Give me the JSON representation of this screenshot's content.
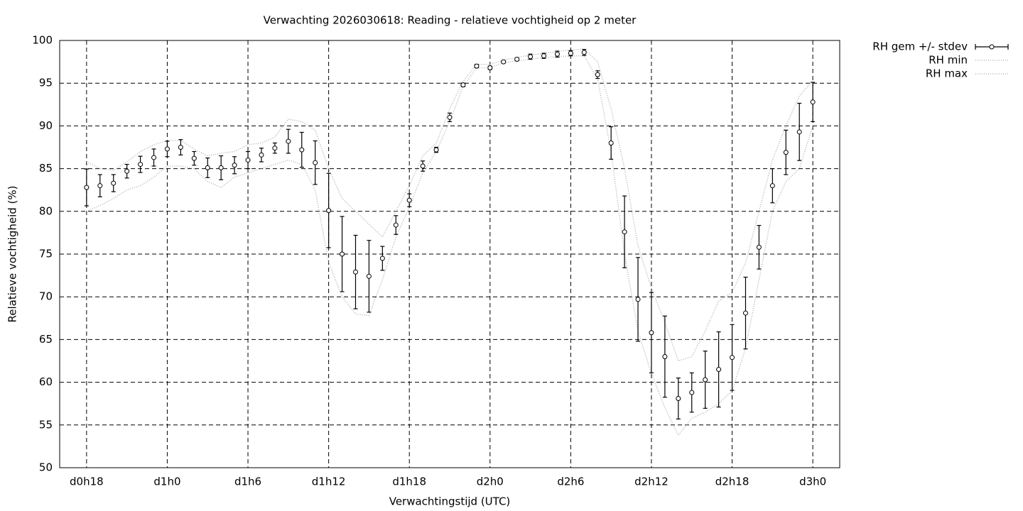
{
  "chart_data": {
    "type": "errorbar-line",
    "title": "Verwachting 2026030618: Reading - relatieve vochtigheid op 2 meter",
    "x_label": "Verwachtingstijd (UTC)",
    "y_label": "Relatieve vochtigheid (%)",
    "x": [
      18,
      19,
      20,
      21,
      22,
      23,
      24,
      25,
      26,
      27,
      28,
      29,
      30,
      31,
      32,
      33,
      34,
      35,
      36,
      37,
      38,
      39,
      40,
      41,
      42,
      43,
      44,
      45,
      46,
      47,
      48,
      49,
      50,
      51,
      52,
      53,
      54,
      55,
      56,
      57,
      58,
      59,
      60,
      61,
      62,
      63,
      64,
      65,
      66,
      67,
      68,
      69,
      70,
      71,
      72
    ],
    "xlim": [
      16,
      74
    ],
    "xticks": [
      {
        "value": 18,
        "label": "d0h18"
      },
      {
        "value": 24,
        "label": "d1h0"
      },
      {
        "value": 30,
        "label": "d1h6"
      },
      {
        "value": 36,
        "label": "d1h12"
      },
      {
        "value": 42,
        "label": "d1h18"
      },
      {
        "value": 48,
        "label": "d2h0"
      },
      {
        "value": 54,
        "label": "d2h6"
      },
      {
        "value": 60,
        "label": "d2h12"
      },
      {
        "value": 66,
        "label": "d2h18"
      },
      {
        "value": 72,
        "label": "d3h0"
      }
    ],
    "ylim": [
      50,
      100
    ],
    "yticks": [
      50,
      55,
      60,
      65,
      70,
      75,
      80,
      85,
      90,
      95,
      100
    ],
    "grid": true,
    "legend": "outside-top-right",
    "series": [
      {
        "name": "RH gem +/- stdev",
        "color": "#000000",
        "values": [
          82.8,
          83.0,
          83.3,
          84.7,
          85.5,
          86.3,
          87.3,
          87.5,
          86.2,
          85.1,
          85.1,
          85.4,
          86.0,
          86.6,
          87.4,
          88.2,
          87.2,
          85.7,
          80.1,
          75.0,
          72.9,
          72.4,
          74.5,
          78.4,
          81.3,
          85.3,
          87.2,
          91.0,
          94.8,
          97.0,
          96.8,
          97.5,
          97.8,
          98.1,
          98.2,
          98.4,
          98.5,
          98.6,
          96.0,
          88.0,
          77.6,
          69.7,
          65.8,
          63.0,
          58.1,
          58.8,
          60.3,
          61.5,
          62.9,
          68.1,
          75.8,
          83.0,
          86.9,
          89.3,
          92.8
        ],
        "errors": [
          2.15,
          1.3,
          1.0,
          0.8,
          0.95,
          1.0,
          0.9,
          0.9,
          0.8,
          1.15,
          1.4,
          1.0,
          1.0,
          0.8,
          0.6,
          1.4,
          2.05,
          2.55,
          4.35,
          4.4,
          4.3,
          4.2,
          1.4,
          1.1,
          0.75,
          0.6,
          0.3,
          0.5,
          0.2,
          0.2,
          0.2,
          0.15,
          0.15,
          0.3,
          0.3,
          0.35,
          0.3,
          0.35,
          0.45,
          1.9,
          4.2,
          4.9,
          4.7,
          4.75,
          2.4,
          2.3,
          3.35,
          4.4,
          3.85,
          4.2,
          2.55,
          2.0,
          2.6,
          3.35,
          2.3
        ]
      },
      {
        "name": "RH min",
        "color": "#aaaaaa",
        "values": [
          80.0,
          80.7,
          81.5,
          82.5,
          83.0,
          84.0,
          85.3,
          85.3,
          85.0,
          83.5,
          82.8,
          84.0,
          84.5,
          85.0,
          85.5,
          86.0,
          85.5,
          82.5,
          74.0,
          70.0,
          68.0,
          67.8,
          72.0,
          77.0,
          80.5,
          84.5,
          87.0,
          90.5,
          94.6,
          96.8,
          96.8,
          97.4,
          97.6,
          97.8,
          98.0,
          98.1,
          98.2,
          98.2,
          95.5,
          87.0,
          75.0,
          66.0,
          61.0,
          57.0,
          53.8,
          55.8,
          56.5,
          57.5,
          59.0,
          64.0,
          72.0,
          80.0,
          83.5,
          85.0,
          90.0
        ]
      },
      {
        "name": "RH max",
        "color": "#aaaaaa",
        "values": [
          85.8,
          85.0,
          84.8,
          85.8,
          87.0,
          87.8,
          88.3,
          88.3,
          87.3,
          86.5,
          86.8,
          87.0,
          87.8,
          88.0,
          88.7,
          90.8,
          90.5,
          89.5,
          85.0,
          81.5,
          80.0,
          78.5,
          77.0,
          80.0,
          83.0,
          86.5,
          88.0,
          92.0,
          95.2,
          97.2,
          97.2,
          97.7,
          98.0,
          98.3,
          98.5,
          98.7,
          98.9,
          99.0,
          97.5,
          92.0,
          85.0,
          76.0,
          71.0,
          67.0,
          62.5,
          63.0,
          66.0,
          69.5,
          70.5,
          74.0,
          80.0,
          86.0,
          90.0,
          93.5,
          95.3
        ]
      }
    ]
  }
}
